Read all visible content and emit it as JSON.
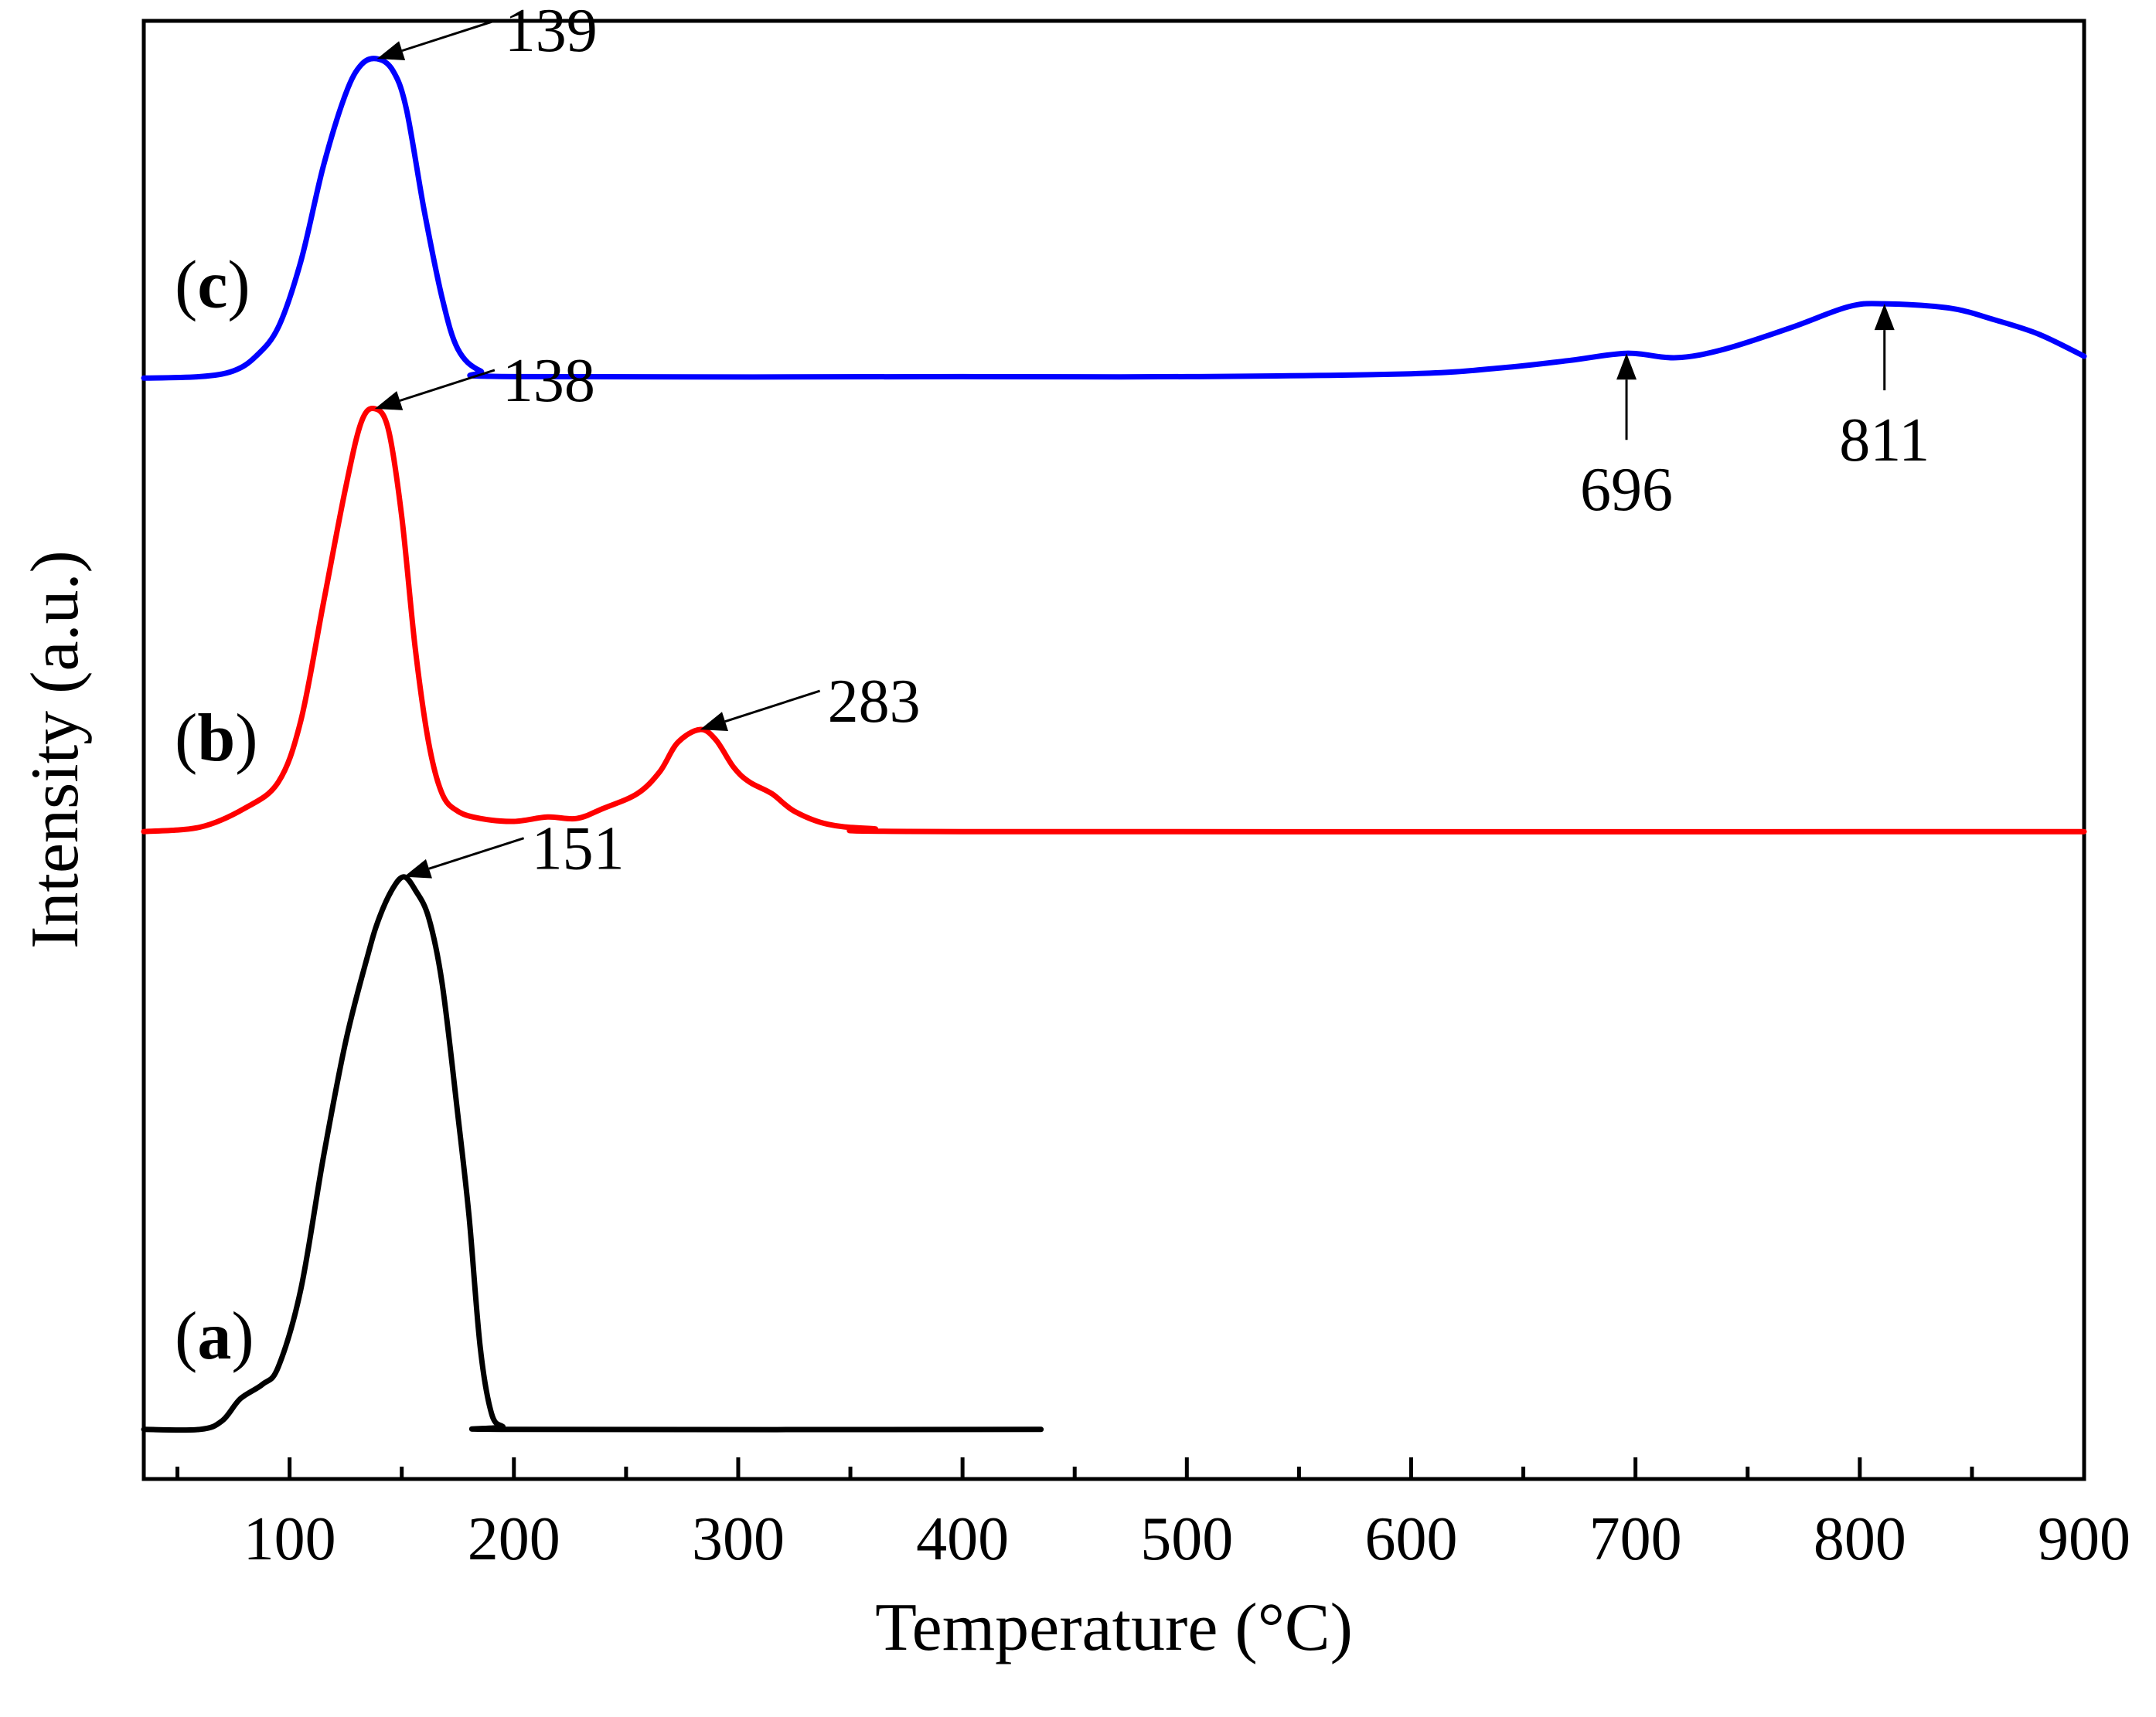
{
  "chart_data": {
    "type": "line",
    "title": "",
    "xlabel": "Temperature (°C)",
    "ylabel": "Intensity (a.u.)",
    "xlim": [
      35,
      900
    ],
    "ylim": [
      0,
      1
    ],
    "x_ticks": [
      100,
      200,
      300,
      400,
      500,
      600,
      700,
      800,
      900
    ],
    "x_minor_step": 50,
    "grid": false,
    "y_tick_labels": false,
    "series": [
      {
        "name": "(a)",
        "label_letter": "a",
        "color": "#000000",
        "points": [
          [
            35,
            0.034
          ],
          [
            60,
            0.034
          ],
          [
            70,
            0.04
          ],
          [
            78,
            0.055
          ],
          [
            88,
            0.065
          ],
          [
            95,
            0.077
          ],
          [
            105,
            0.13
          ],
          [
            115,
            0.22
          ],
          [
            125,
            0.3
          ],
          [
            135,
            0.36
          ],
          [
            140,
            0.385
          ],
          [
            146,
            0.405
          ],
          [
            151,
            0.413
          ],
          [
            156,
            0.404
          ],
          [
            162,
            0.385
          ],
          [
            168,
            0.34
          ],
          [
            175,
            0.25
          ],
          [
            180,
            0.18
          ],
          [
            185,
            0.09
          ],
          [
            190,
            0.045
          ],
          [
            195,
            0.036
          ],
          [
            200,
            0.034
          ],
          [
            435,
            0.034
          ]
        ]
      },
      {
        "name": "(b)",
        "label_letter": "b",
        "color": "#ff0000",
        "points": [
          [
            35,
            0.444
          ],
          [
            60,
            0.447
          ],
          [
            80,
            0.46
          ],
          [
            95,
            0.478
          ],
          [
            105,
            0.52
          ],
          [
            115,
            0.6
          ],
          [
            125,
            0.68
          ],
          [
            132,
            0.725
          ],
          [
            138,
            0.734
          ],
          [
            144,
            0.72
          ],
          [
            150,
            0.66
          ],
          [
            156,
            0.57
          ],
          [
            162,
            0.505
          ],
          [
            168,
            0.47
          ],
          [
            175,
            0.458
          ],
          [
            185,
            0.453
          ],
          [
            200,
            0.451
          ],
          [
            215,
            0.454
          ],
          [
            228,
            0.453
          ],
          [
            240,
            0.46
          ],
          [
            255,
            0.47
          ],
          [
            265,
            0.485
          ],
          [
            273,
            0.505
          ],
          [
            283,
            0.514
          ],
          [
            290,
            0.507
          ],
          [
            298,
            0.488
          ],
          [
            305,
            0.478
          ],
          [
            315,
            0.47
          ],
          [
            325,
            0.458
          ],
          [
            340,
            0.449
          ],
          [
            360,
            0.446
          ],
          [
            400,
            0.444
          ],
          [
            900,
            0.444
          ]
        ]
      },
      {
        "name": "(c)",
        "label_letter": "c",
        "color": "#0000ff",
        "points": [
          [
            35,
            0.755
          ],
          [
            60,
            0.756
          ],
          [
            75,
            0.76
          ],
          [
            85,
            0.77
          ],
          [
            95,
            0.79
          ],
          [
            105,
            0.835
          ],
          [
            115,
            0.9
          ],
          [
            125,
            0.95
          ],
          [
            132,
            0.97
          ],
          [
            139,
            0.974
          ],
          [
            146,
            0.966
          ],
          [
            152,
            0.94
          ],
          [
            160,
            0.87
          ],
          [
            168,
            0.81
          ],
          [
            175,
            0.775
          ],
          [
            185,
            0.76
          ],
          [
            200,
            0.756
          ],
          [
            400,
            0.756
          ],
          [
            500,
            0.756
          ],
          [
            600,
            0.758
          ],
          [
            640,
            0.762
          ],
          [
            670,
            0.767
          ],
          [
            696,
            0.772
          ],
          [
            718,
            0.769
          ],
          [
            740,
            0.775
          ],
          [
            770,
            0.79
          ],
          [
            795,
            0.804
          ],
          [
            811,
            0.806
          ],
          [
            840,
            0.803
          ],
          [
            860,
            0.795
          ],
          [
            880,
            0.785
          ],
          [
            900,
            0.77
          ]
        ]
      }
    ],
    "annotations": [
      {
        "series": "(c)",
        "label": "139",
        "peak_x": 139,
        "peak_y": 0.974,
        "direction": "from-upper-right"
      },
      {
        "series": "(b)",
        "label": "138",
        "peak_x": 138,
        "peak_y": 0.734,
        "direction": "from-upper-right"
      },
      {
        "series": "(b)",
        "label": "283",
        "peak_x": 283,
        "peak_y": 0.514,
        "direction": "from-upper-right"
      },
      {
        "series": "(a)",
        "label": "151",
        "peak_x": 151,
        "peak_y": 0.413,
        "direction": "from-upper-right"
      },
      {
        "series": "(c)",
        "label": "696",
        "peak_x": 696,
        "peak_y": 0.772,
        "direction": "from-below"
      },
      {
        "series": "(c)",
        "label": "811",
        "peak_x": 811,
        "peak_y": 0.806,
        "direction": "from-below"
      }
    ]
  }
}
